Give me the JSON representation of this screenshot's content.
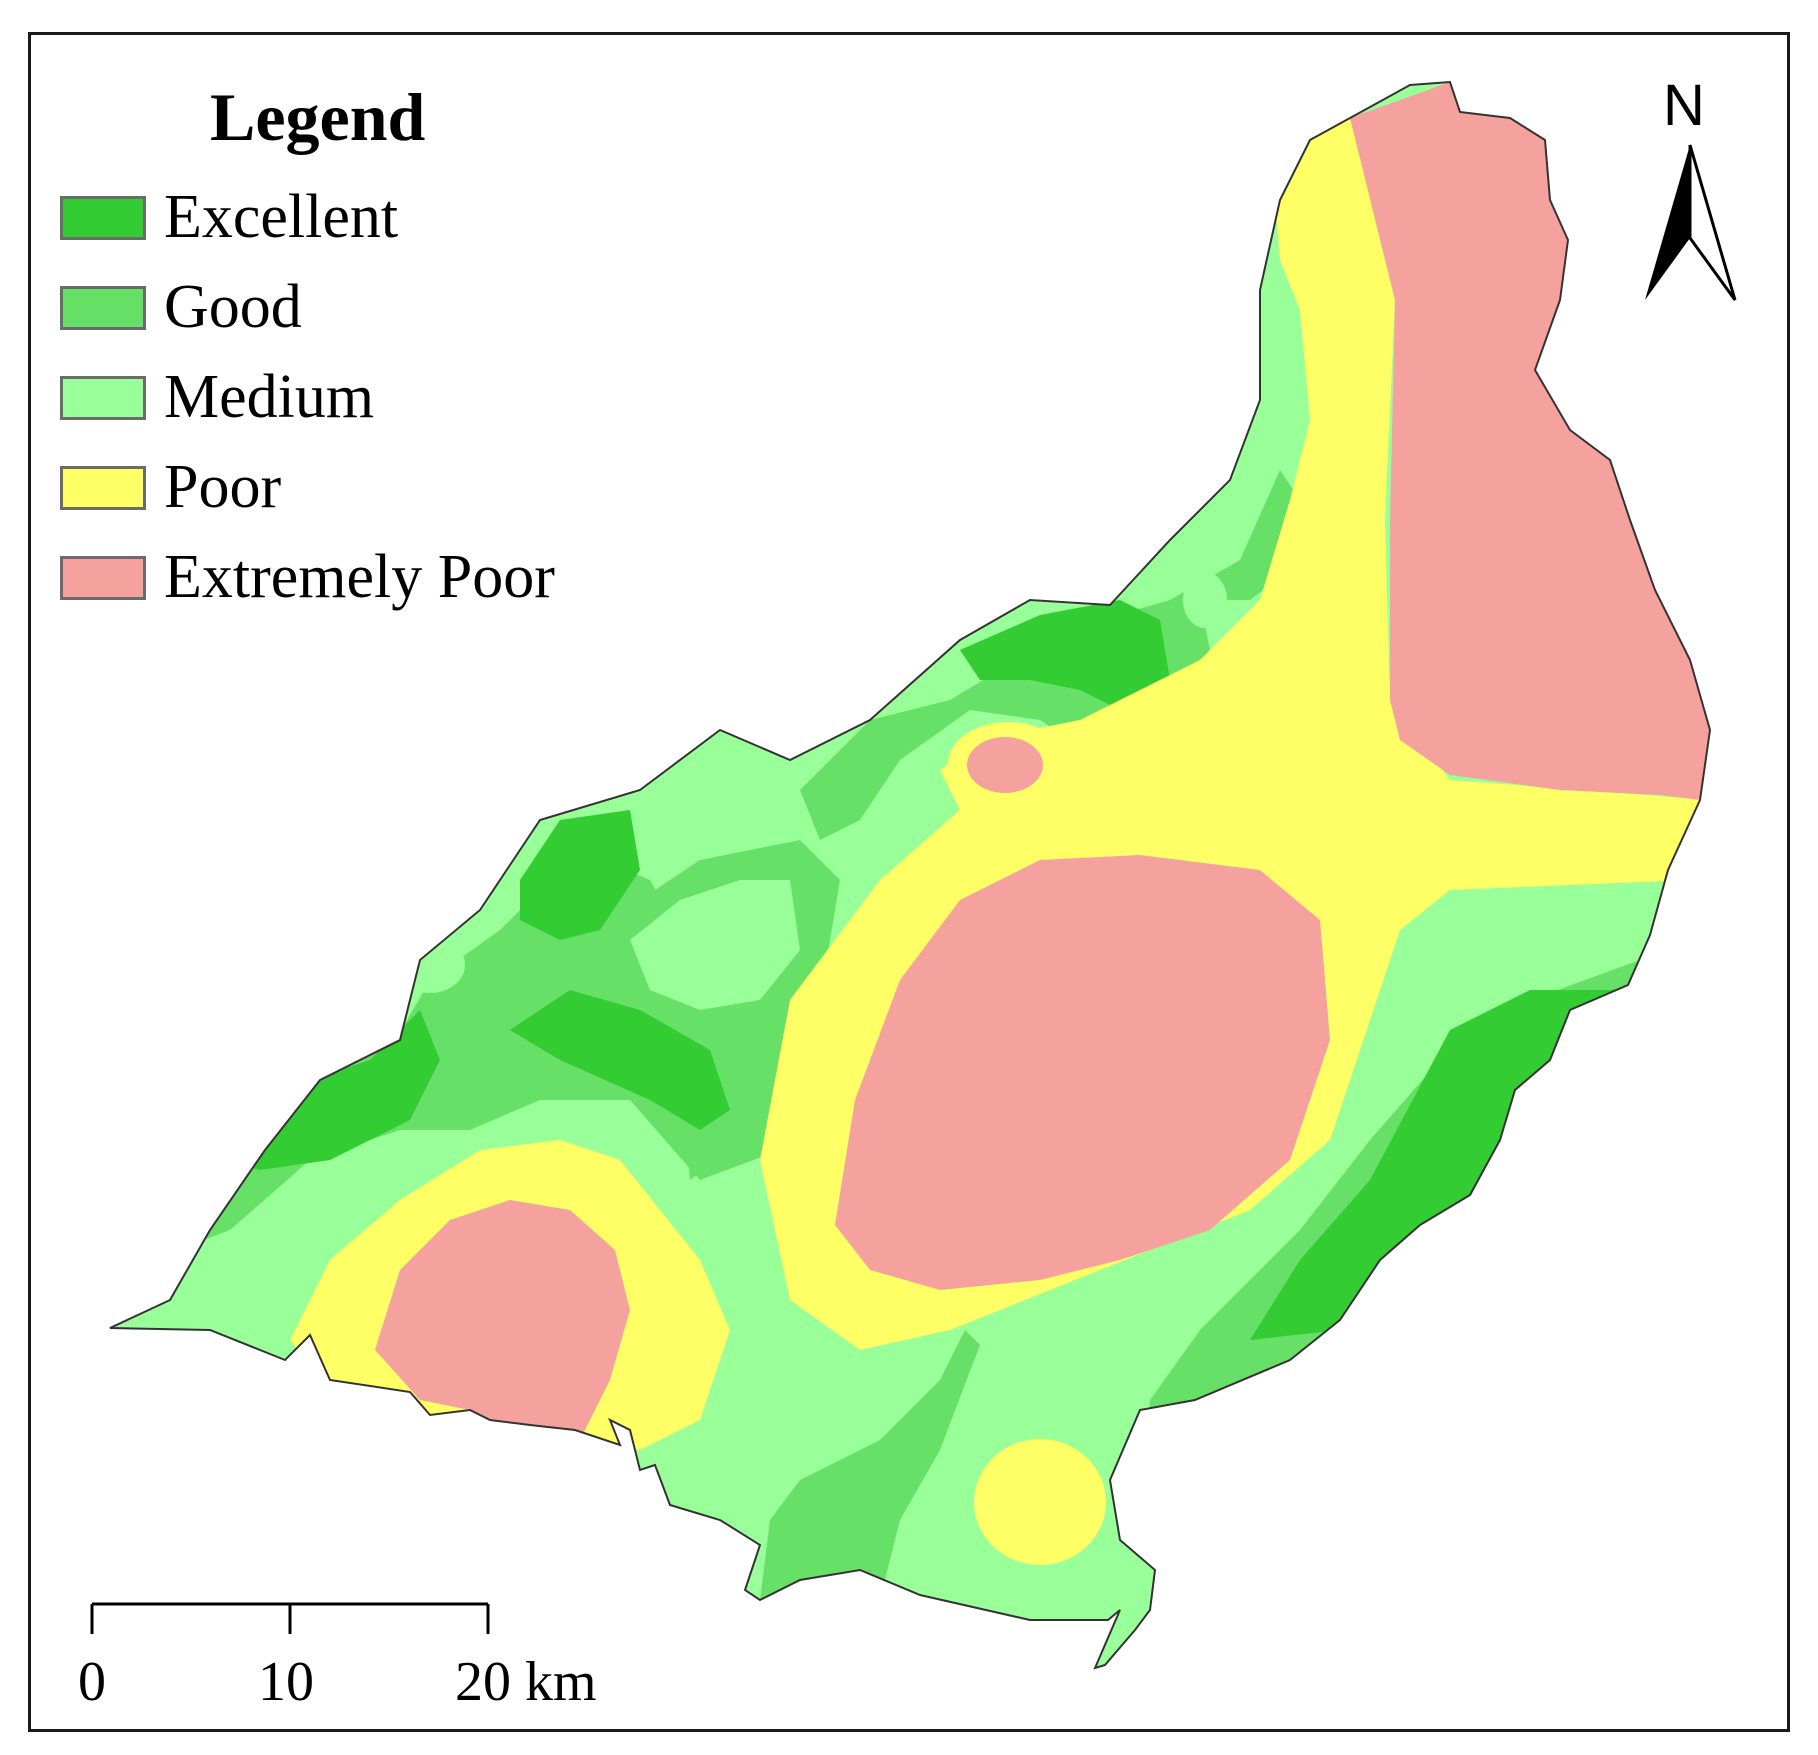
{
  "legend": {
    "title": "Legend",
    "items": [
      {
        "label": "Excellent",
        "color": "#33cc33"
      },
      {
        "label": "Good",
        "color": "#66e066"
      },
      {
        "label": "Medium",
        "color": "#99ff99"
      },
      {
        "label": "Poor",
        "color": "#ffff66"
      },
      {
        "label": "Extremely Poor",
        "color": "#f5a29e"
      }
    ]
  },
  "scale_bar": {
    "ticks": [
      "0",
      "10",
      "20 km"
    ]
  },
  "north_arrow": {
    "label": "N",
    "icon": "north-arrow-icon"
  }
}
